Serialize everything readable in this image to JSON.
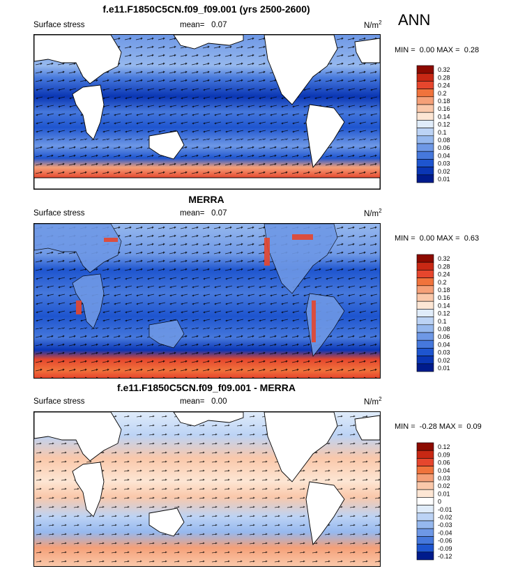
{
  "season": "ANN",
  "chart_data": [
    {
      "type": "heatmap",
      "title": "f.e11.F1850C5CN.f09_f09.001 (yrs 2500-2600)",
      "left_label": "Surface stress",
      "mean_label": "mean=",
      "mean_value": "0.07",
      "units": "N/m",
      "units_sup": "2",
      "min_label": "MIN =",
      "min_value": "0.00",
      "max_label": "MAX =",
      "max_value": "0.28",
      "colorbar_levels": [
        "0.32",
        "0.28",
        "0.24",
        "0.2",
        "0.18",
        "0.16",
        "0.14",
        "0.12",
        "0.1",
        "0.08",
        "0.06",
        "0.04",
        "0.03",
        "0.02",
        "0.01"
      ],
      "colorbar_colors": [
        "#8c0a00",
        "#c82814",
        "#e6462d",
        "#f0733c",
        "#f5a078",
        "#fac8aa",
        "#fde6d4",
        "#e0ecfa",
        "#bcd3f5",
        "#96b8ee",
        "#6e98e6",
        "#4678dc",
        "#1e55cf",
        "#0a36b4",
        "#001b8c"
      ]
    },
    {
      "type": "heatmap",
      "title": "MERRA",
      "left_label": "Surface stress",
      "mean_label": "mean=",
      "mean_value": "0.07",
      "units": "N/m",
      "units_sup": "2",
      "min_label": "MIN =",
      "min_value": "0.00",
      "max_label": "MAX =",
      "max_value": "0.63",
      "colorbar_levels": [
        "0.32",
        "0.28",
        "0.24",
        "0.2",
        "0.18",
        "0.16",
        "0.14",
        "0.12",
        "0.1",
        "0.08",
        "0.06",
        "0.04",
        "0.03",
        "0.02",
        "0.01"
      ],
      "colorbar_colors": [
        "#8c0a00",
        "#c82814",
        "#e6462d",
        "#f0733c",
        "#f5a078",
        "#fac8aa",
        "#fde6d4",
        "#e0ecfa",
        "#bcd3f5",
        "#96b8ee",
        "#6e98e6",
        "#4678dc",
        "#1e55cf",
        "#0a36b4",
        "#001b8c"
      ]
    },
    {
      "type": "heatmap",
      "title": "f.e11.F1850C5CN.f09_f09.001 - MERRA",
      "left_label": "Surface stress",
      "mean_label": "mean=",
      "mean_value": "0.00",
      "units": "N/m",
      "units_sup": "2",
      "min_label": "MIN =",
      "min_value": "-0.28",
      "max_label": "MAX =",
      "max_value": "0.09",
      "colorbar_levels": [
        "0.12",
        "0.09",
        "0.06",
        "0.04",
        "0.03",
        "0.02",
        "0.01",
        "0",
        "-0.01",
        "-0.02",
        "-0.03",
        "-0.04",
        "-0.06",
        "-0.09",
        "-0.12"
      ],
      "colorbar_colors": [
        "#8c0a00",
        "#c82814",
        "#e6462d",
        "#f0733c",
        "#f5a078",
        "#fac8aa",
        "#fde6d4",
        "#ffffff",
        "#e0ecfa",
        "#bcd3f5",
        "#96b8ee",
        "#6e98e6",
        "#4678dc",
        "#1e55cf",
        "#001b8c"
      ]
    }
  ]
}
